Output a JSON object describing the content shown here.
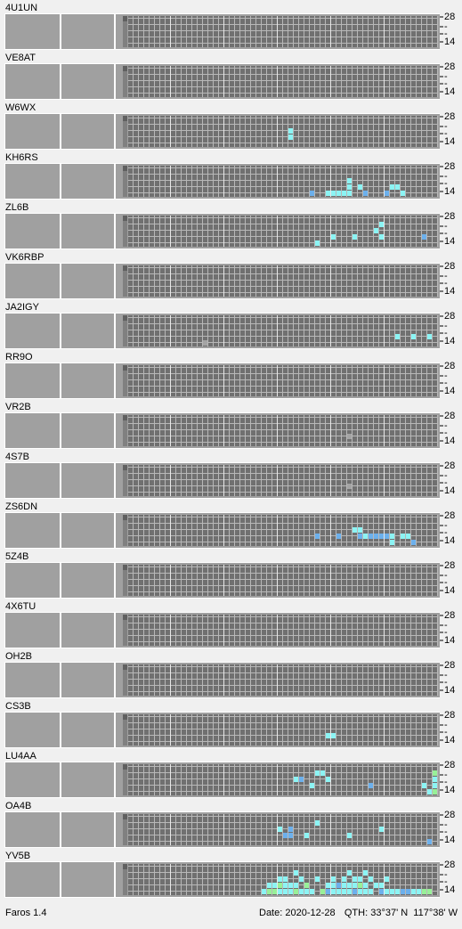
{
  "band_labels": [
    "28",
    "-",
    "-",
    "14"
  ],
  "level_colors": [
    "#a4a4a4",
    "#6cb0ec",
    "#8cf4f4",
    "#98f098"
  ],
  "stations": [
    {
      "call": "4U1UN",
      "hits": []
    },
    {
      "call": "VE8AT",
      "hits": []
    },
    {
      "call": "W6WX",
      "hits": [
        [
          32,
          2,
          2
        ],
        [
          32,
          3,
          2
        ]
      ]
    },
    {
      "call": "KH6RS",
      "hits": [
        [
          36,
          4,
          1
        ],
        [
          39,
          4,
          2
        ],
        [
          40,
          4,
          2
        ],
        [
          41,
          4,
          2
        ],
        [
          42,
          4,
          2
        ],
        [
          43,
          4,
          2
        ],
        [
          46,
          4,
          1
        ],
        [
          50,
          4,
          1
        ],
        [
          53,
          4,
          2
        ],
        [
          43,
          3,
          2
        ],
        [
          45,
          3,
          2
        ],
        [
          51,
          3,
          2
        ],
        [
          52,
          3,
          2
        ],
        [
          43,
          2,
          2
        ]
      ]
    },
    {
      "call": "ZL6B",
      "hits": [
        [
          49,
          1,
          2
        ],
        [
          48,
          2,
          2
        ],
        [
          49,
          3,
          2
        ],
        [
          40,
          3,
          2
        ],
        [
          44,
          3,
          2
        ],
        [
          57,
          3,
          1
        ],
        [
          37,
          4,
          2
        ]
      ]
    },
    {
      "call": "VK6RBP",
      "hits": []
    },
    {
      "call": "JA2IGY",
      "hits": [
        [
          52,
          3,
          2
        ],
        [
          55,
          3,
          2
        ],
        [
          58,
          3,
          2
        ],
        [
          16,
          4,
          0
        ]
      ]
    },
    {
      "call": "RR9O",
      "hits": []
    },
    {
      "call": "VR2B",
      "hits": [
        [
          43,
          3,
          0
        ]
      ]
    },
    {
      "call": "4S7B",
      "hits": [
        [
          43,
          3,
          0
        ]
      ]
    },
    {
      "call": "ZS6DN",
      "hits": [
        [
          37,
          3,
          1
        ],
        [
          41,
          3,
          1
        ],
        [
          45,
          3,
          1
        ],
        [
          46,
          3,
          2
        ],
        [
          47,
          3,
          1
        ],
        [
          48,
          3,
          1
        ],
        [
          49,
          3,
          1
        ],
        [
          50,
          3,
          1
        ],
        [
          51,
          3,
          2
        ],
        [
          53,
          3,
          2
        ],
        [
          54,
          3,
          2
        ],
        [
          44,
          2,
          2
        ],
        [
          45,
          2,
          2
        ],
        [
          51,
          4,
          2
        ],
        [
          55,
          4,
          1
        ]
      ]
    },
    {
      "call": "5Z4B",
      "hits": []
    },
    {
      "call": "4X6TU",
      "hits": []
    },
    {
      "call": "OH2B",
      "hits": []
    },
    {
      "call": "CS3B",
      "hits": [
        [
          39,
          3,
          2
        ],
        [
          40,
          3,
          2
        ]
      ]
    },
    {
      "call": "LU4AA",
      "hits": [
        [
          37,
          1,
          2
        ],
        [
          38,
          1,
          2
        ],
        [
          33,
          2,
          2
        ],
        [
          34,
          2,
          1
        ],
        [
          39,
          2,
          2
        ],
        [
          36,
          3,
          2
        ],
        [
          47,
          3,
          1
        ],
        [
          57,
          3,
          2
        ],
        [
          59,
          3,
          2
        ],
        [
          59,
          2,
          2
        ],
        [
          59,
          1,
          3
        ],
        [
          58,
          4,
          2
        ],
        [
          59,
          4,
          3
        ]
      ]
    },
    {
      "call": "OA4B",
      "hits": [
        [
          37,
          1,
          2
        ],
        [
          49,
          2,
          2
        ],
        [
          30,
          2,
          2
        ],
        [
          32,
          2,
          1
        ],
        [
          31,
          3,
          1
        ],
        [
          32,
          3,
          1
        ],
        [
          35,
          3,
          2
        ],
        [
          43,
          3,
          2
        ],
        [
          58,
          4,
          1
        ]
      ]
    },
    {
      "call": "YV5B",
      "hits": [
        [
          33,
          1,
          2
        ],
        [
          43,
          1,
          2
        ],
        [
          46,
          1,
          2
        ],
        [
          30,
          2,
          2
        ],
        [
          31,
          2,
          2
        ],
        [
          34,
          2,
          2
        ],
        [
          37,
          2,
          2
        ],
        [
          40,
          2,
          2
        ],
        [
          42,
          2,
          2
        ],
        [
          44,
          2,
          2
        ],
        [
          45,
          2,
          2
        ],
        [
          47,
          2,
          2
        ],
        [
          50,
          2,
          2
        ],
        [
          28,
          3,
          2
        ],
        [
          29,
          3,
          2
        ],
        [
          30,
          3,
          3
        ],
        [
          31,
          3,
          2
        ],
        [
          32,
          3,
          2
        ],
        [
          33,
          3,
          2
        ],
        [
          35,
          3,
          3
        ],
        [
          39,
          3,
          2
        ],
        [
          40,
          3,
          2
        ],
        [
          41,
          3,
          1
        ],
        [
          42,
          3,
          2
        ],
        [
          43,
          3,
          2
        ],
        [
          44,
          3,
          2
        ],
        [
          45,
          3,
          3
        ],
        [
          46,
          3,
          2
        ],
        [
          48,
          3,
          2
        ],
        [
          49,
          3,
          2
        ],
        [
          27,
          4,
          2
        ],
        [
          28,
          4,
          3
        ],
        [
          29,
          4,
          3
        ],
        [
          30,
          4,
          2
        ],
        [
          31,
          4,
          2
        ],
        [
          32,
          4,
          2
        ],
        [
          33,
          4,
          3
        ],
        [
          34,
          4,
          2
        ],
        [
          35,
          4,
          2
        ],
        [
          36,
          4,
          2
        ],
        [
          38,
          4,
          3
        ],
        [
          39,
          4,
          1
        ],
        [
          40,
          4,
          2
        ],
        [
          41,
          4,
          2
        ],
        [
          42,
          4,
          2
        ],
        [
          43,
          4,
          2
        ],
        [
          44,
          4,
          1
        ],
        [
          45,
          4,
          2
        ],
        [
          46,
          4,
          2
        ],
        [
          47,
          4,
          2
        ],
        [
          49,
          4,
          1
        ],
        [
          50,
          4,
          2
        ],
        [
          51,
          4,
          2
        ],
        [
          52,
          4,
          2
        ],
        [
          53,
          4,
          1
        ],
        [
          54,
          4,
          1
        ],
        [
          55,
          4,
          2
        ],
        [
          56,
          4,
          2
        ],
        [
          57,
          4,
          3
        ],
        [
          58,
          4,
          3
        ]
      ]
    }
  ],
  "status": {
    "app": "Faros 1.4",
    "date": "Date: 2020-12-28",
    "qth": "QTH: 33°37' N  117°38' W"
  }
}
